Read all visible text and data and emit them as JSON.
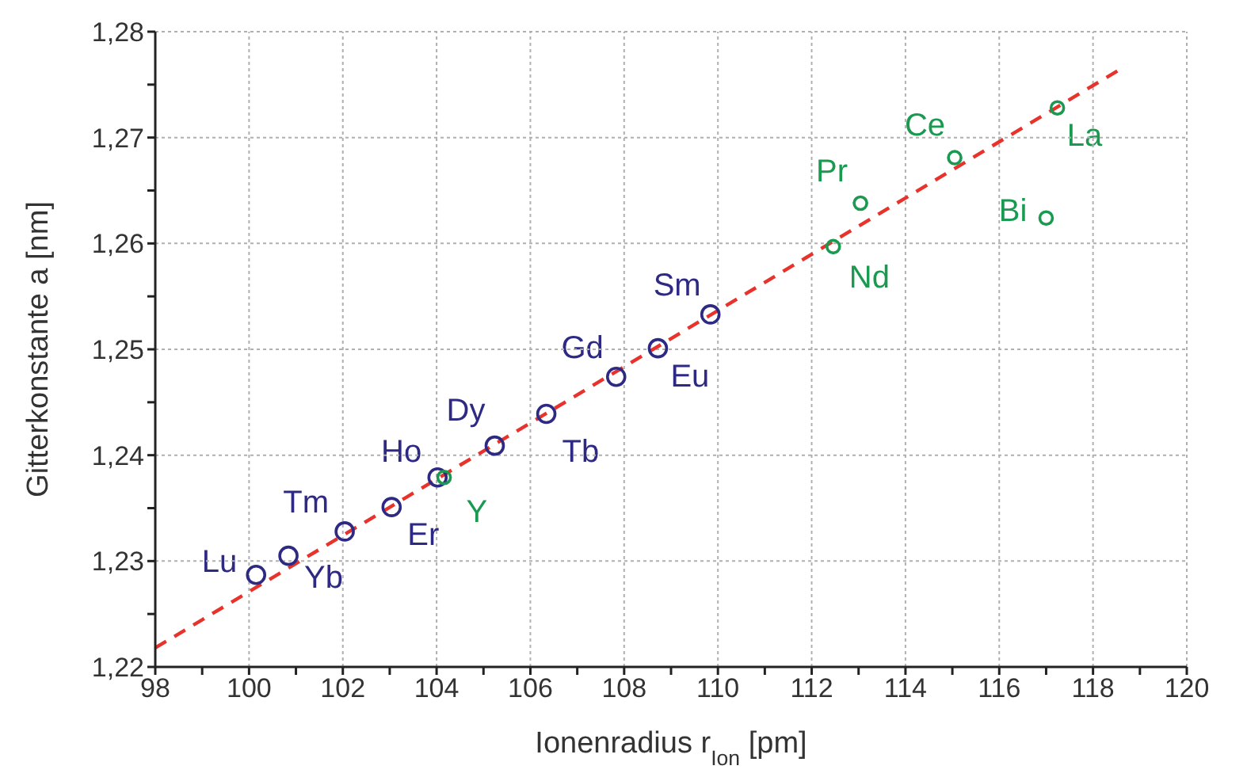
{
  "chart_data": {
    "type": "scatter",
    "xlabel": "Ionenradius r$_{Ion}$ [pm]",
    "ylabel": "Gitterkonstante a [nm]",
    "xlim": [
      98,
      120
    ],
    "ylim": [
      1.22,
      1.28
    ],
    "xticks": [
      98,
      {
        "value": 99,
        "label": null
      },
      100,
      {
        "value": 101,
        "label": null
      },
      102,
      {
        "value": 103,
        "label": null
      },
      104,
      {
        "value": 105,
        "label": null
      },
      106,
      {
        "value": 107,
        "label": null
      },
      108,
      {
        "value": 109,
        "label": null
      },
      110,
      {
        "value": 111,
        "label": null
      },
      112,
      {
        "value": 113,
        "label": null
      },
      114,
      {
        "value": 115,
        "label": null
      },
      116,
      {
        "value": 117,
        "label": null
      },
      118,
      {
        "value": 119,
        "label": null
      },
      120
    ],
    "yticks": [
      {
        "value": 1.22,
        "label": "1,22"
      },
      {
        "value": 1.225,
        "label": null
      },
      {
        "value": 1.23,
        "label": "1,23"
      },
      {
        "value": 1.235,
        "label": null
      },
      {
        "value": 1.24,
        "label": "1,24"
      },
      {
        "value": 1.245,
        "label": null
      },
      {
        "value": 1.25,
        "label": "1,25"
      },
      {
        "value": 1.255,
        "label": null
      },
      {
        "value": 1.26,
        "label": "1,26"
      },
      {
        "value": 1.265,
        "label": null
      },
      {
        "value": 1.27,
        "label": "1,27"
      },
      {
        "value": 1.275,
        "label": null
      },
      {
        "value": 1.28,
        "label": "1,28"
      }
    ],
    "grid": true,
    "marker": "circle",
    "legend": false,
    "series": [
      {
        "color": "#2e2a83",
        "x": [
          100.15,
          100.84,
          102.04,
          103.04,
          104.02,
          105.24,
          106.34,
          107.83,
          108.72,
          109.84
        ],
        "values": [
          1.2287,
          1.2305,
          1.2328,
          1.2351,
          1.2379,
          1.2409,
          1.2439,
          1.2474,
          1.2501,
          1.2533
        ]
      },
      {
        "color": "#1a9a50",
        "x": [
          104.16,
          112.46,
          113.04,
          115.05,
          117.0,
          117.24
        ],
        "values": [
          1.2379,
          1.2597,
          1.2638,
          1.2681,
          1.2624,
          1.2728
        ]
      },
      {
        "type": "line",
        "color": "#e8332c",
        "line_style": "dashed",
        "marker": "none",
        "x": [
          98,
          118.56
        ],
        "values": [
          1.2218,
          1.2764
        ]
      }
    ],
    "annotations": [
      {
        "text": "Lu",
        "x": 100.15,
        "y": 1.2287
      },
      {
        "text": "Yb",
        "x": 100.84,
        "y": 1.2305
      },
      {
        "text": "Tm",
        "x": 102.04,
        "y": 1.2328
      },
      {
        "text": "Er",
        "x": 103.04,
        "y": 1.2351
      },
      {
        "text": "Ho",
        "x": 104.02,
        "y": 1.2379
      },
      {
        "text": "Y",
        "x": 104.16,
        "y": 1.2379
      },
      {
        "text": "Dy",
        "x": 105.24,
        "y": 1.2409
      },
      {
        "text": "Tb",
        "x": 106.34,
        "y": 1.2439
      },
      {
        "text": "Gd",
        "x": 107.83,
        "y": 1.2474
      },
      {
        "text": "Eu",
        "x": 108.72,
        "y": 1.2501
      },
      {
        "text": "Sm",
        "x": 109.84,
        "y": 1.2533
      },
      {
        "text": "Nd",
        "x": 112.46,
        "y": 1.2597
      },
      {
        "text": "Pr",
        "x": 113.04,
        "y": 1.2638
      },
      {
        "text": "Ce",
        "x": 115.05,
        "y": 1.2681
      },
      {
        "text": "Bi",
        "x": 117.0,
        "y": 1.2624
      },
      {
        "text": "La",
        "x": 117.24,
        "y": 1.2728
      }
    ]
  }
}
